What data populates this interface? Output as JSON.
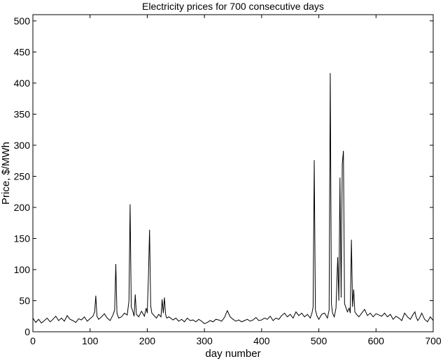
{
  "chart_data": {
    "type": "line",
    "title": "Electricity prices for 700 consecutive days",
    "xlabel": "day number",
    "ylabel": "Price, $/MWh",
    "xlim": [
      0,
      700
    ],
    "ylim": [
      0,
      510
    ],
    "xticks": [
      0,
      100,
      200,
      300,
      400,
      500,
      600,
      700
    ],
    "yticks": [
      0,
      50,
      100,
      150,
      200,
      250,
      300,
      350,
      400,
      450,
      500
    ],
    "grid": false,
    "line_color": "#000000",
    "series": [
      {
        "x": [
          0,
          5,
          10,
          15,
          20,
          25,
          30,
          35,
          40,
          45,
          50,
          55,
          60,
          65,
          70,
          75,
          80,
          85,
          90,
          95,
          100,
          105,
          108,
          110,
          112,
          115,
          120,
          125,
          130,
          135,
          140,
          143,
          145,
          147,
          150,
          155,
          160,
          165,
          168,
          170,
          172,
          175,
          177,
          179,
          181,
          185,
          190,
          195,
          198,
          200,
          202,
          204,
          206,
          208,
          212,
          216,
          220,
          224,
          226,
          228,
          230,
          232,
          234,
          238,
          245,
          250,
          255,
          260,
          265,
          270,
          275,
          280,
          285,
          290,
          295,
          300,
          305,
          310,
          315,
          320,
          325,
          330,
          335,
          340,
          345,
          350,
          355,
          360,
          365,
          370,
          375,
          380,
          385,
          390,
          395,
          400,
          405,
          410,
          415,
          420,
          425,
          430,
          435,
          440,
          445,
          450,
          455,
          460,
          465,
          470,
          475,
          480,
          485,
          488,
          490,
          492,
          494,
          497,
          500,
          505,
          510,
          515,
          518,
          520,
          522,
          524,
          527,
          530,
          533,
          535,
          537,
          539,
          541,
          543,
          545,
          547,
          550,
          553,
          555,
          557,
          559,
          561,
          563,
          566,
          570,
          575,
          580,
          585,
          590,
          595,
          600,
          605,
          610,
          615,
          620,
          625,
          630,
          635,
          640,
          645,
          650,
          655,
          660,
          665,
          668,
          670,
          673,
          676,
          680,
          685,
          690,
          695,
          700
        ],
        "y": [
          22,
          15,
          20,
          14,
          18,
          22,
          16,
          20,
          25,
          18,
          22,
          17,
          26,
          20,
          18,
          15,
          21,
          19,
          24,
          17,
          21,
          25,
          32,
          58,
          25,
          20,
          24,
          29,
          22,
          18,
          27,
          35,
          109,
          30,
          22,
          24,
          30,
          27,
          50,
          205,
          40,
          32,
          25,
          60,
          28,
          24,
          33,
          25,
          38,
          30,
          88,
          164,
          42,
          30,
          26,
          22,
          28,
          24,
          52,
          30,
          55,
          28,
          22,
          24,
          19,
          22,
          17,
          20,
          16,
          22,
          18,
          19,
          16,
          20,
          17,
          13,
          15,
          18,
          16,
          20,
          19,
          17,
          23,
          34,
          24,
          20,
          17,
          19,
          16,
          18,
          20,
          17,
          19,
          23,
          18,
          19,
          22,
          20,
          25,
          18,
          22,
          20,
          26,
          30,
          24,
          28,
          22,
          32,
          26,
          30,
          24,
          28,
          22,
          30,
          40,
          276,
          35,
          25,
          20,
          28,
          30,
          22,
          35,
          416,
          45,
          30,
          24,
          38,
          120,
          50,
          248,
          55,
          270,
          291,
          45,
          40,
          32,
          38,
          30,
          148,
          40,
          68,
          32,
          28,
          24,
          30,
          36,
          26,
          30,
          24,
          29,
          27,
          25,
          30,
          24,
          28,
          20,
          25,
          22,
          18,
          30,
          24,
          20,
          28,
          32,
          24,
          18,
          22,
          30,
          20,
          16,
          24,
          18
        ]
      }
    ]
  }
}
